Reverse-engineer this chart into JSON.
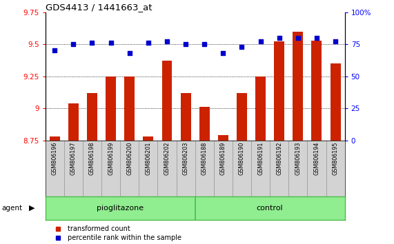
{
  "title": "GDS4413 / 1441663_at",
  "samples": [
    "GSM806196",
    "GSM806197",
    "GSM806198",
    "GSM806199",
    "GSM806200",
    "GSM806201",
    "GSM806202",
    "GSM806203",
    "GSM806188",
    "GSM806189",
    "GSM806190",
    "GSM806191",
    "GSM806192",
    "GSM806193",
    "GSM806194",
    "GSM806195"
  ],
  "bar_values": [
    8.78,
    9.04,
    9.12,
    9.25,
    9.25,
    8.78,
    9.37,
    9.12,
    9.01,
    8.79,
    9.12,
    9.25,
    9.52,
    9.6,
    9.53,
    9.35
  ],
  "percentile_values": [
    70,
    75,
    76,
    76,
    68,
    76,
    77,
    75,
    75,
    68,
    73,
    77,
    80,
    80,
    80,
    77
  ],
  "bar_color": "#CC2200",
  "percentile_color": "#0000CC",
  "ylim_left": [
    8.75,
    9.75
  ],
  "ylim_right": [
    0,
    100
  ],
  "yticks_left": [
    8.75,
    9.0,
    9.25,
    9.5,
    9.75
  ],
  "yticks_right": [
    0,
    25,
    50,
    75,
    100
  ],
  "ytick_labels_left": [
    "8.75",
    "9",
    "9.25",
    "9.5",
    "9.75"
  ],
  "ytick_labels_right": [
    "0",
    "25",
    "50",
    "75",
    "100%"
  ],
  "grid_values": [
    9.0,
    9.25,
    9.5
  ],
  "bar_width": 0.55,
  "plot_bg_color": "#FFFFFF",
  "sample_bg_color": "#D3D3D3",
  "group_bg_color": "#90EE90",
  "group_border_color": "#4CBB4C",
  "pioglitazone_label": "pioglitazone",
  "control_label": "control",
  "agent_label": "agent",
  "legend_label_bar": "transformed count",
  "legend_label_pct": "percentile rank within the sample"
}
